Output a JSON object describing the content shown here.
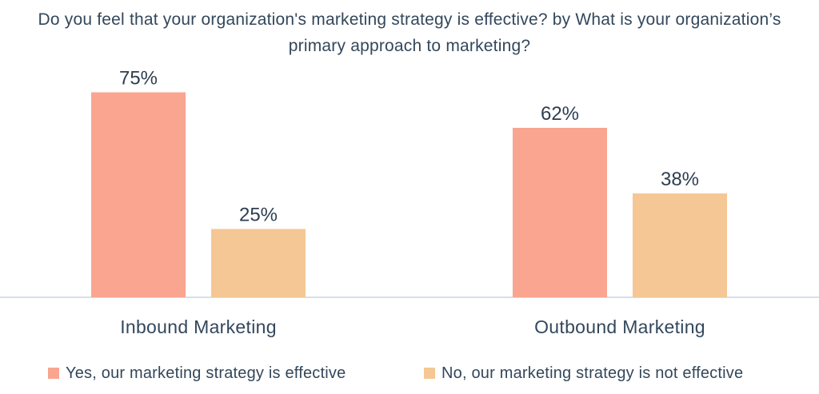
{
  "chart_data": {
    "type": "bar",
    "title": "Do you feel that your organization's marketing strategy is effective? by What is your organization’s primary approach to marketing?",
    "categories": [
      "Inbound Marketing",
      "Outbound Marketing"
    ],
    "series": [
      {
        "name": "Yes, our marketing strategy is effective",
        "values": [
          75,
          62
        ],
        "labels": [
          "75%",
          "62%"
        ],
        "color": "#f9a590"
      },
      {
        "name": "No, our marketing strategy is not effective",
        "values": [
          25,
          38
        ],
        "labels": [
          "25%",
          "38%"
        ],
        "color": "#f5c794"
      }
    ],
    "xlabel": "",
    "ylabel": "",
    "ylim": [
      0,
      100
    ],
    "grid": false,
    "legend_position": "bottom",
    "axis_color": "#cbd6e2"
  }
}
